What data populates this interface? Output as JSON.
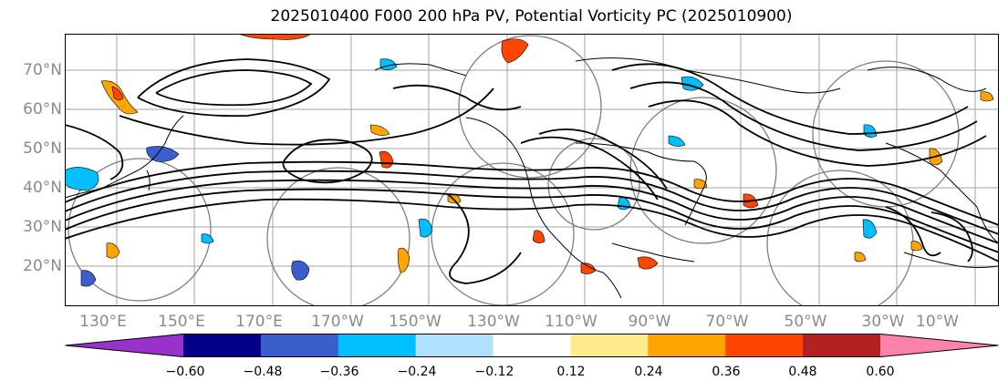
{
  "title": "2025010400 F000 200 hPa PV, Potential Vorticity PC (2025010900)",
  "lat_labels": [
    "70°N",
    "60°N",
    "50°N",
    "40°N",
    "30°N",
    "20°N"
  ],
  "lon_labels": [
    "130°E",
    "150°E",
    "170°E",
    "170°W",
    "150°W",
    "130°W",
    "110°W",
    "90°W",
    "70°W",
    "50°W",
    "30°W",
    "10°W"
  ],
  "colorbar": {
    "colors": [
      "#9932cc",
      "#00008b",
      "#3a5fcd",
      "#00bfff",
      "#b0e2ff",
      "#ffffff",
      "#ffec8b",
      "#ffa500",
      "#ff4500",
      "#b22222",
      "#ff82ab"
    ],
    "labels": [
      "−0.60",
      "−0.48",
      "−0.36",
      "−0.24",
      "−0.12",
      "0.12",
      "0.24",
      "0.36",
      "0.48",
      "0.60"
    ]
  },
  "map_style": {
    "land_outline": "#000000",
    "grid_color": "#9a9a9a",
    "contour_color": "#000000",
    "circle_color": "#7f7f7f"
  }
}
